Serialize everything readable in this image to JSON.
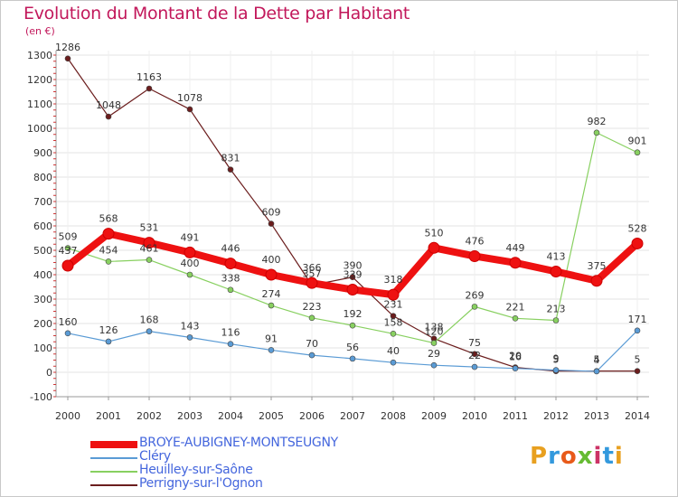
{
  "title": "Evolution du Montant de la Dette par Habitant",
  "unit_label": "(en €)",
  "logo": {
    "text": "Proxiti",
    "colors": [
      "#e8a020",
      "#3399dd",
      "#e85a1a",
      "#66bb33",
      "#cc3366",
      "#3399dd",
      "#e8a020"
    ]
  },
  "chart_data": {
    "type": "line",
    "title": "Evolution du Montant de la Dette par Habitant",
    "ylabel": "(en €)",
    "xlabel": "",
    "ylim": [
      -100,
      1300
    ],
    "yticks": [
      -100,
      0,
      100,
      200,
      300,
      400,
      500,
      600,
      700,
      800,
      900,
      1000,
      1100,
      1200,
      1300
    ],
    "grid": true,
    "legend_position": "bottom",
    "x": [
      "2000",
      "2001",
      "2002",
      "2003",
      "2004",
      "2005",
      "2006",
      "2007",
      "2008",
      "2009",
      "2010",
      "2011",
      "2012",
      "2013",
      "2014"
    ],
    "series": [
      {
        "name": "BROYE-AUBIGNEY-MONTSEUGNY",
        "color": "#ee1111",
        "values": [
          437,
          568,
          531,
          491,
          446,
          400,
          366,
          339,
          318,
          510,
          476,
          449,
          413,
          375,
          528
        ]
      },
      {
        "name": "Cléry",
        "color": "#5a9bd5",
        "values": [
          160,
          126,
          168,
          143,
          116,
          91,
          70,
          56,
          40,
          29,
          22,
          16,
          9,
          4,
          171
        ]
      },
      {
        "name": "Heuilley-sur-Saône",
        "color": "#88d060",
        "values": [
          509,
          454,
          461,
          400,
          338,
          274,
          223,
          192,
          158,
          120,
          269,
          221,
          213,
          982,
          901
        ]
      },
      {
        "name": "Perrigny-sur-l'Ognon",
        "color": "#6b1d1d",
        "values": [
          1286,
          1048,
          1163,
          1078,
          831,
          609,
          357,
          390,
          231,
          138,
          75,
          20,
          5,
          5,
          5
        ]
      }
    ]
  }
}
